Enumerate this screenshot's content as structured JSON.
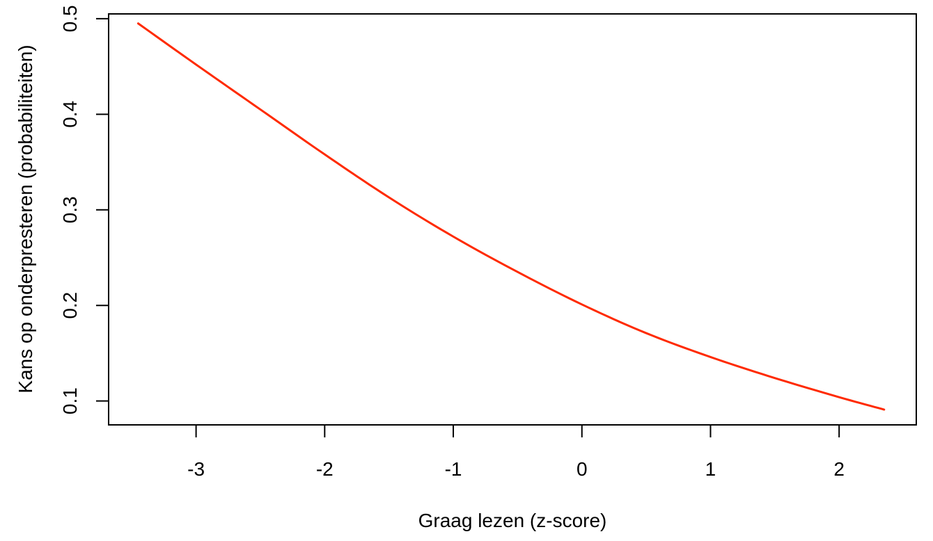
{
  "chart_data": {
    "type": "line",
    "title": "",
    "xlabel": "Graag lezen (z-score)",
    "ylabel": "Kans op onderpresteren (probabiliteiten)",
    "xlim": [
      -3.68,
      2.6
    ],
    "ylim": [
      0.075,
      0.505
    ],
    "xticks": [
      -3,
      -2,
      -1,
      0,
      1,
      2
    ],
    "xtick_labels": [
      "-3",
      "-2",
      "-1",
      "0",
      "1",
      "2"
    ],
    "yticks": [
      0.1,
      0.2,
      0.3,
      0.4,
      0.5
    ],
    "ytick_labels": [
      "0.1",
      "0.2",
      "0.3",
      "0.4",
      "0.5"
    ],
    "grid": false,
    "legend": "none",
    "series": [
      {
        "color": "#ff2a00",
        "x": [
          -3.45,
          -3.0,
          -2.5,
          -2.0,
          -1.5,
          -1.0,
          -0.5,
          0.0,
          0.5,
          1.0,
          1.5,
          2.0,
          2.35
        ],
        "y": [
          0.495,
          0.452,
          0.405,
          0.358,
          0.313,
          0.272,
          0.235,
          0.201,
          0.171,
          0.146,
          0.124,
          0.104,
          0.091
        ]
      }
    ]
  }
}
